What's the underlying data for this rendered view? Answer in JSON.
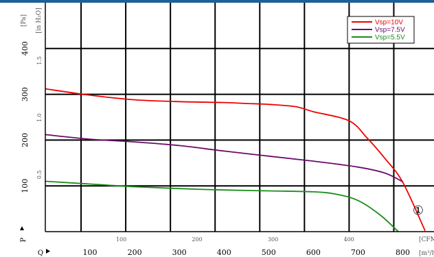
{
  "chart_data": {
    "type": "line",
    "colors": {
      "frame_top": "#1f5f9a",
      "grid": "#000000",
      "axis": "#000000"
    },
    "y_axis": {
      "unit_label": "[Pa]",
      "ylim": [
        0,
        500
      ],
      "ticks": [
        {
          "value": 100,
          "label": "100"
        },
        {
          "value": 200,
          "label": "200"
        },
        {
          "value": 300,
          "label": "300"
        },
        {
          "value": 400,
          "label": "400"
        }
      ],
      "marker_label": "P"
    },
    "y_axis_secondary": {
      "unit_label": "[in H₂O]",
      "ticks": [
        {
          "value": 0.5,
          "label": "0.5"
        },
        {
          "value": 1.0,
          "label": "1.0"
        },
        {
          "value": 1.5,
          "label": "1.5"
        }
      ]
    },
    "x_axis": {
      "unit_label": "[m³/h]",
      "xlim": [
        0,
        870
      ],
      "ticks": [
        {
          "value": 100,
          "label": "100"
        },
        {
          "value": 200,
          "label": "200"
        },
        {
          "value": 300,
          "label": "300"
        },
        {
          "value": 400,
          "label": "400"
        },
        {
          "value": 500,
          "label": "500"
        },
        {
          "value": 600,
          "label": "600"
        },
        {
          "value": 700,
          "label": "700"
        },
        {
          "value": 800,
          "label": "800"
        }
      ],
      "marker_label": "Q"
    },
    "x_axis_secondary": {
      "unit_label": "[CFM]",
      "ticks": [
        {
          "value": 100,
          "label": "100"
        },
        {
          "value": 200,
          "label": "200"
        },
        {
          "value": 300,
          "label": "300"
        },
        {
          "value": 400,
          "label": "400"
        }
      ]
    },
    "grid_x": [
      80,
      180,
      280,
      380,
      480,
      580,
      680,
      780
    ],
    "grid_y": [
      100,
      200,
      300,
      400
    ],
    "grid": true,
    "legend_placement": "top-right",
    "series": [
      {
        "name": "Vsp=10V",
        "color": "#ee0000",
        "x": [
          0,
          100,
          200,
          300,
          400,
          450,
          500,
          560,
          600,
          680,
          720,
          760,
          800,
          850
        ],
        "y": [
          312,
          298,
          288,
          284,
          282,
          280,
          278,
          273,
          262,
          242,
          205,
          160,
          108,
          2
        ]
      },
      {
        "name": "Vsp=7.5V",
        "color": "#6a0a6a",
        "x": [
          0,
          100,
          200,
          300,
          400,
          500,
          600,
          700,
          760,
          800
        ],
        "y": [
          212,
          202,
          196,
          188,
          176,
          165,
          154,
          141,
          128,
          109
        ]
      },
      {
        "name": "Vsp=5.5V",
        "color": "#1a8c1a",
        "x": [
          0,
          100,
          200,
          300,
          400,
          500,
          600,
          650,
          700,
          750,
          790
        ],
        "y": [
          110,
          104,
          98,
          94,
          91,
          89,
          87,
          82,
          68,
          36,
          0
        ]
      }
    ],
    "annotation": "①"
  }
}
